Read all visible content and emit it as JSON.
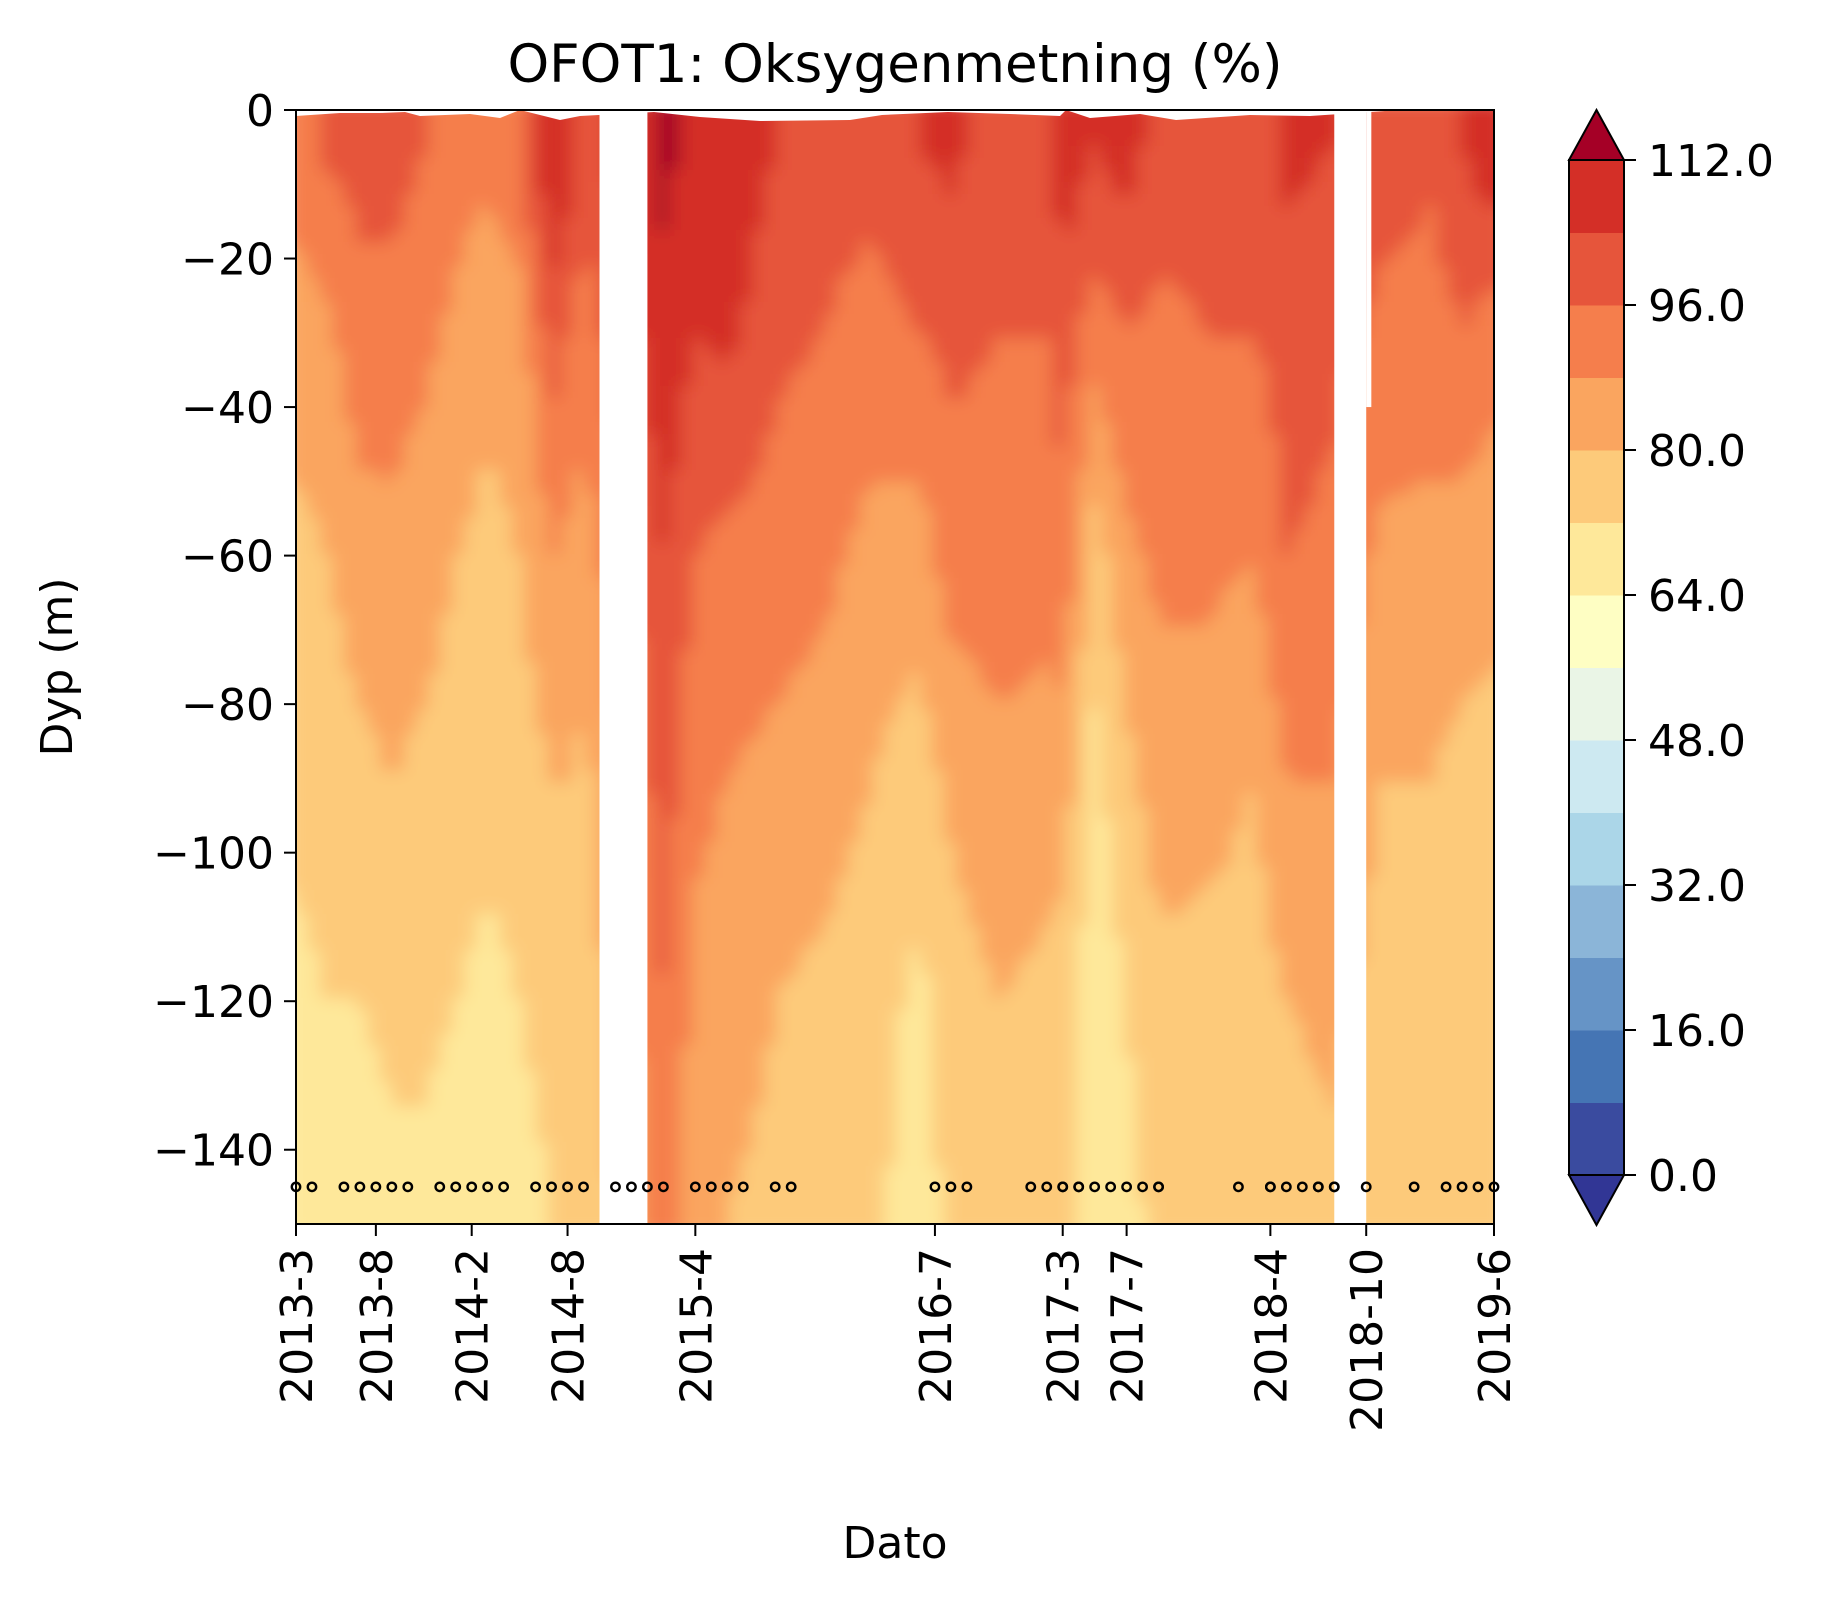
{
  "chart_data": {
    "type": "heatmap",
    "title": "OFOT1: Oksygenmetning (%)",
    "xlabel": "Dato",
    "ylabel": "Dyp (m)",
    "ylim": [
      -150,
      0
    ],
    "yticks": [
      0,
      -20,
      -40,
      -60,
      -80,
      -100,
      -120,
      -140
    ],
    "ytick_labels": [
      "0",
      "−20",
      "−40",
      "−60",
      "−80",
      "−100",
      "−120",
      "−140"
    ],
    "xlim": [
      "2013-3",
      "2019-6"
    ],
    "xticks": [
      "2013-3",
      "2013-8",
      "2014-2",
      "2014-8",
      "2015-4",
      "2016-7",
      "2017-3",
      "2017-7",
      "2018-4",
      "2018-10",
      "2019-6"
    ],
    "colorbar": {
      "levels": [
        0,
        8,
        16,
        24,
        32,
        40,
        48,
        56,
        64,
        72,
        80,
        88,
        96,
        104,
        112
      ],
      "tick_values": [
        0,
        16,
        32,
        48,
        64,
        80,
        96,
        112
      ],
      "tick_labels": [
        "0.0",
        "16.0",
        "32.0",
        "48.0",
        "64.0",
        "80.0",
        "96.0",
        "112.0"
      ],
      "extend": "both",
      "colors": [
        "#3a4b9f",
        "#4575b4",
        "#6694c6",
        "#8bb5d8",
        "#abd6e8",
        "#cde9f1",
        "#eaf5e6",
        "#fefec3",
        "#fee89a",
        "#fdca7a",
        "#faa55f",
        "#f57e4c",
        "#e6553b",
        "#d42f27",
        "#a50026"
      ],
      "under_color": "#313695",
      "over_color": "#a50026"
    },
    "gaps": [
      [
        "2014-10",
        "2015-1"
      ],
      [
        "2018-8",
        "2018-10"
      ]
    ],
    "sampling_depth": -145,
    "sampling_dates": [
      "2013-3",
      "2013-4",
      "2013-6",
      "2013-7",
      "2013-8",
      "2013-9",
      "2013-10",
      "2013-12",
      "2014-1",
      "2014-2",
      "2014-3",
      "2014-4",
      "2014-6",
      "2014-7",
      "2014-8",
      "2014-9",
      "2014-11",
      "2014-12",
      "2015-1",
      "2015-2",
      "2015-4",
      "2015-5",
      "2015-6",
      "2015-7",
      "2015-9",
      "2015-10",
      "2016-7",
      "2016-8",
      "2016-9",
      "2017-1",
      "2017-2",
      "2017-3",
      "2017-3",
      "2017-4",
      "2017-4",
      "2017-5",
      "2017-6",
      "2017-7",
      "2017-8",
      "2017-9",
      "2017-9",
      "2018-2",
      "2018-4",
      "2018-4",
      "2018-5",
      "2018-6",
      "2018-7",
      "2018-7",
      "2018-8",
      "2018-8",
      "2018-10",
      "2019-1",
      "2019-3",
      "2019-4",
      "2019-5",
      "2019-6"
    ]
  }
}
